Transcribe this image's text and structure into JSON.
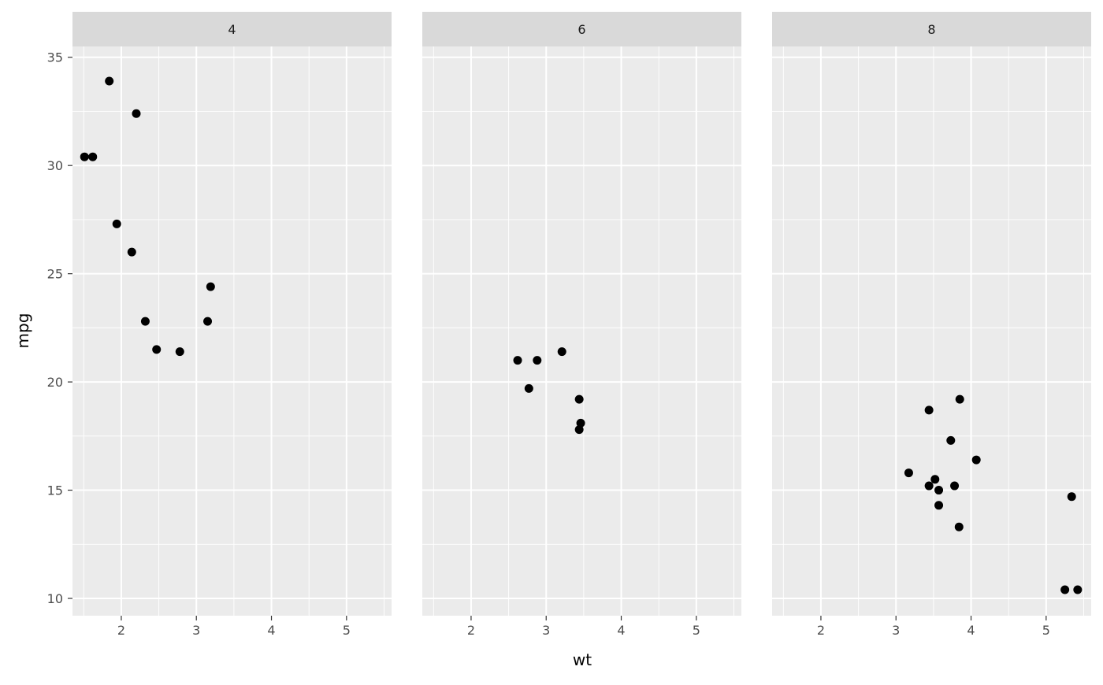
{
  "chart_data": {
    "type": "scatter",
    "facet_variable_values": [
      "4",
      "6",
      "8"
    ],
    "xlabel": "wt",
    "ylabel": "mpg",
    "xlim": [
      1.35,
      5.6
    ],
    "ylim": [
      9.2,
      35.5
    ],
    "x_ticks": [
      2,
      3,
      4,
      5
    ],
    "y_ticks": [
      10,
      15,
      20,
      25,
      30,
      35
    ],
    "grid": true,
    "point_color": "#000000",
    "panel_background": "#ebebeb",
    "strip_background": "#d9d9d9",
    "panels": [
      {
        "strip": "4",
        "points": [
          {
            "x": 1.51,
            "y": 30.4
          },
          {
            "x": 1.62,
            "y": 30.4
          },
          {
            "x": 1.84,
            "y": 33.9
          },
          {
            "x": 1.94,
            "y": 27.3
          },
          {
            "x": 2.14,
            "y": 26.0
          },
          {
            "x": 2.2,
            "y": 32.4
          },
          {
            "x": 2.32,
            "y": 22.8
          },
          {
            "x": 2.47,
            "y": 21.5
          },
          {
            "x": 2.78,
            "y": 21.4
          },
          {
            "x": 3.15,
            "y": 22.8
          },
          {
            "x": 3.19,
            "y": 24.4
          }
        ]
      },
      {
        "strip": "6",
        "points": [
          {
            "x": 2.62,
            "y": 21.0
          },
          {
            "x": 2.77,
            "y": 19.7
          },
          {
            "x": 2.88,
            "y": 21.0
          },
          {
            "x": 3.21,
            "y": 21.4
          },
          {
            "x": 3.44,
            "y": 17.8
          },
          {
            "x": 3.44,
            "y": 19.2
          },
          {
            "x": 3.46,
            "y": 18.1
          }
        ]
      },
      {
        "strip": "8",
        "points": [
          {
            "x": 3.17,
            "y": 15.8
          },
          {
            "x": 3.44,
            "y": 18.7
          },
          {
            "x": 3.44,
            "y": 15.2
          },
          {
            "x": 3.52,
            "y": 15.5
          },
          {
            "x": 3.57,
            "y": 14.3
          },
          {
            "x": 3.57,
            "y": 15.0
          },
          {
            "x": 3.73,
            "y": 17.3
          },
          {
            "x": 3.78,
            "y": 15.2
          },
          {
            "x": 3.84,
            "y": 13.3
          },
          {
            "x": 3.85,
            "y": 19.2
          },
          {
            "x": 4.07,
            "y": 16.4
          },
          {
            "x": 5.25,
            "y": 10.4
          },
          {
            "x": 5.34,
            "y": 14.7
          },
          {
            "x": 5.42,
            "y": 10.4
          }
        ]
      }
    ]
  }
}
